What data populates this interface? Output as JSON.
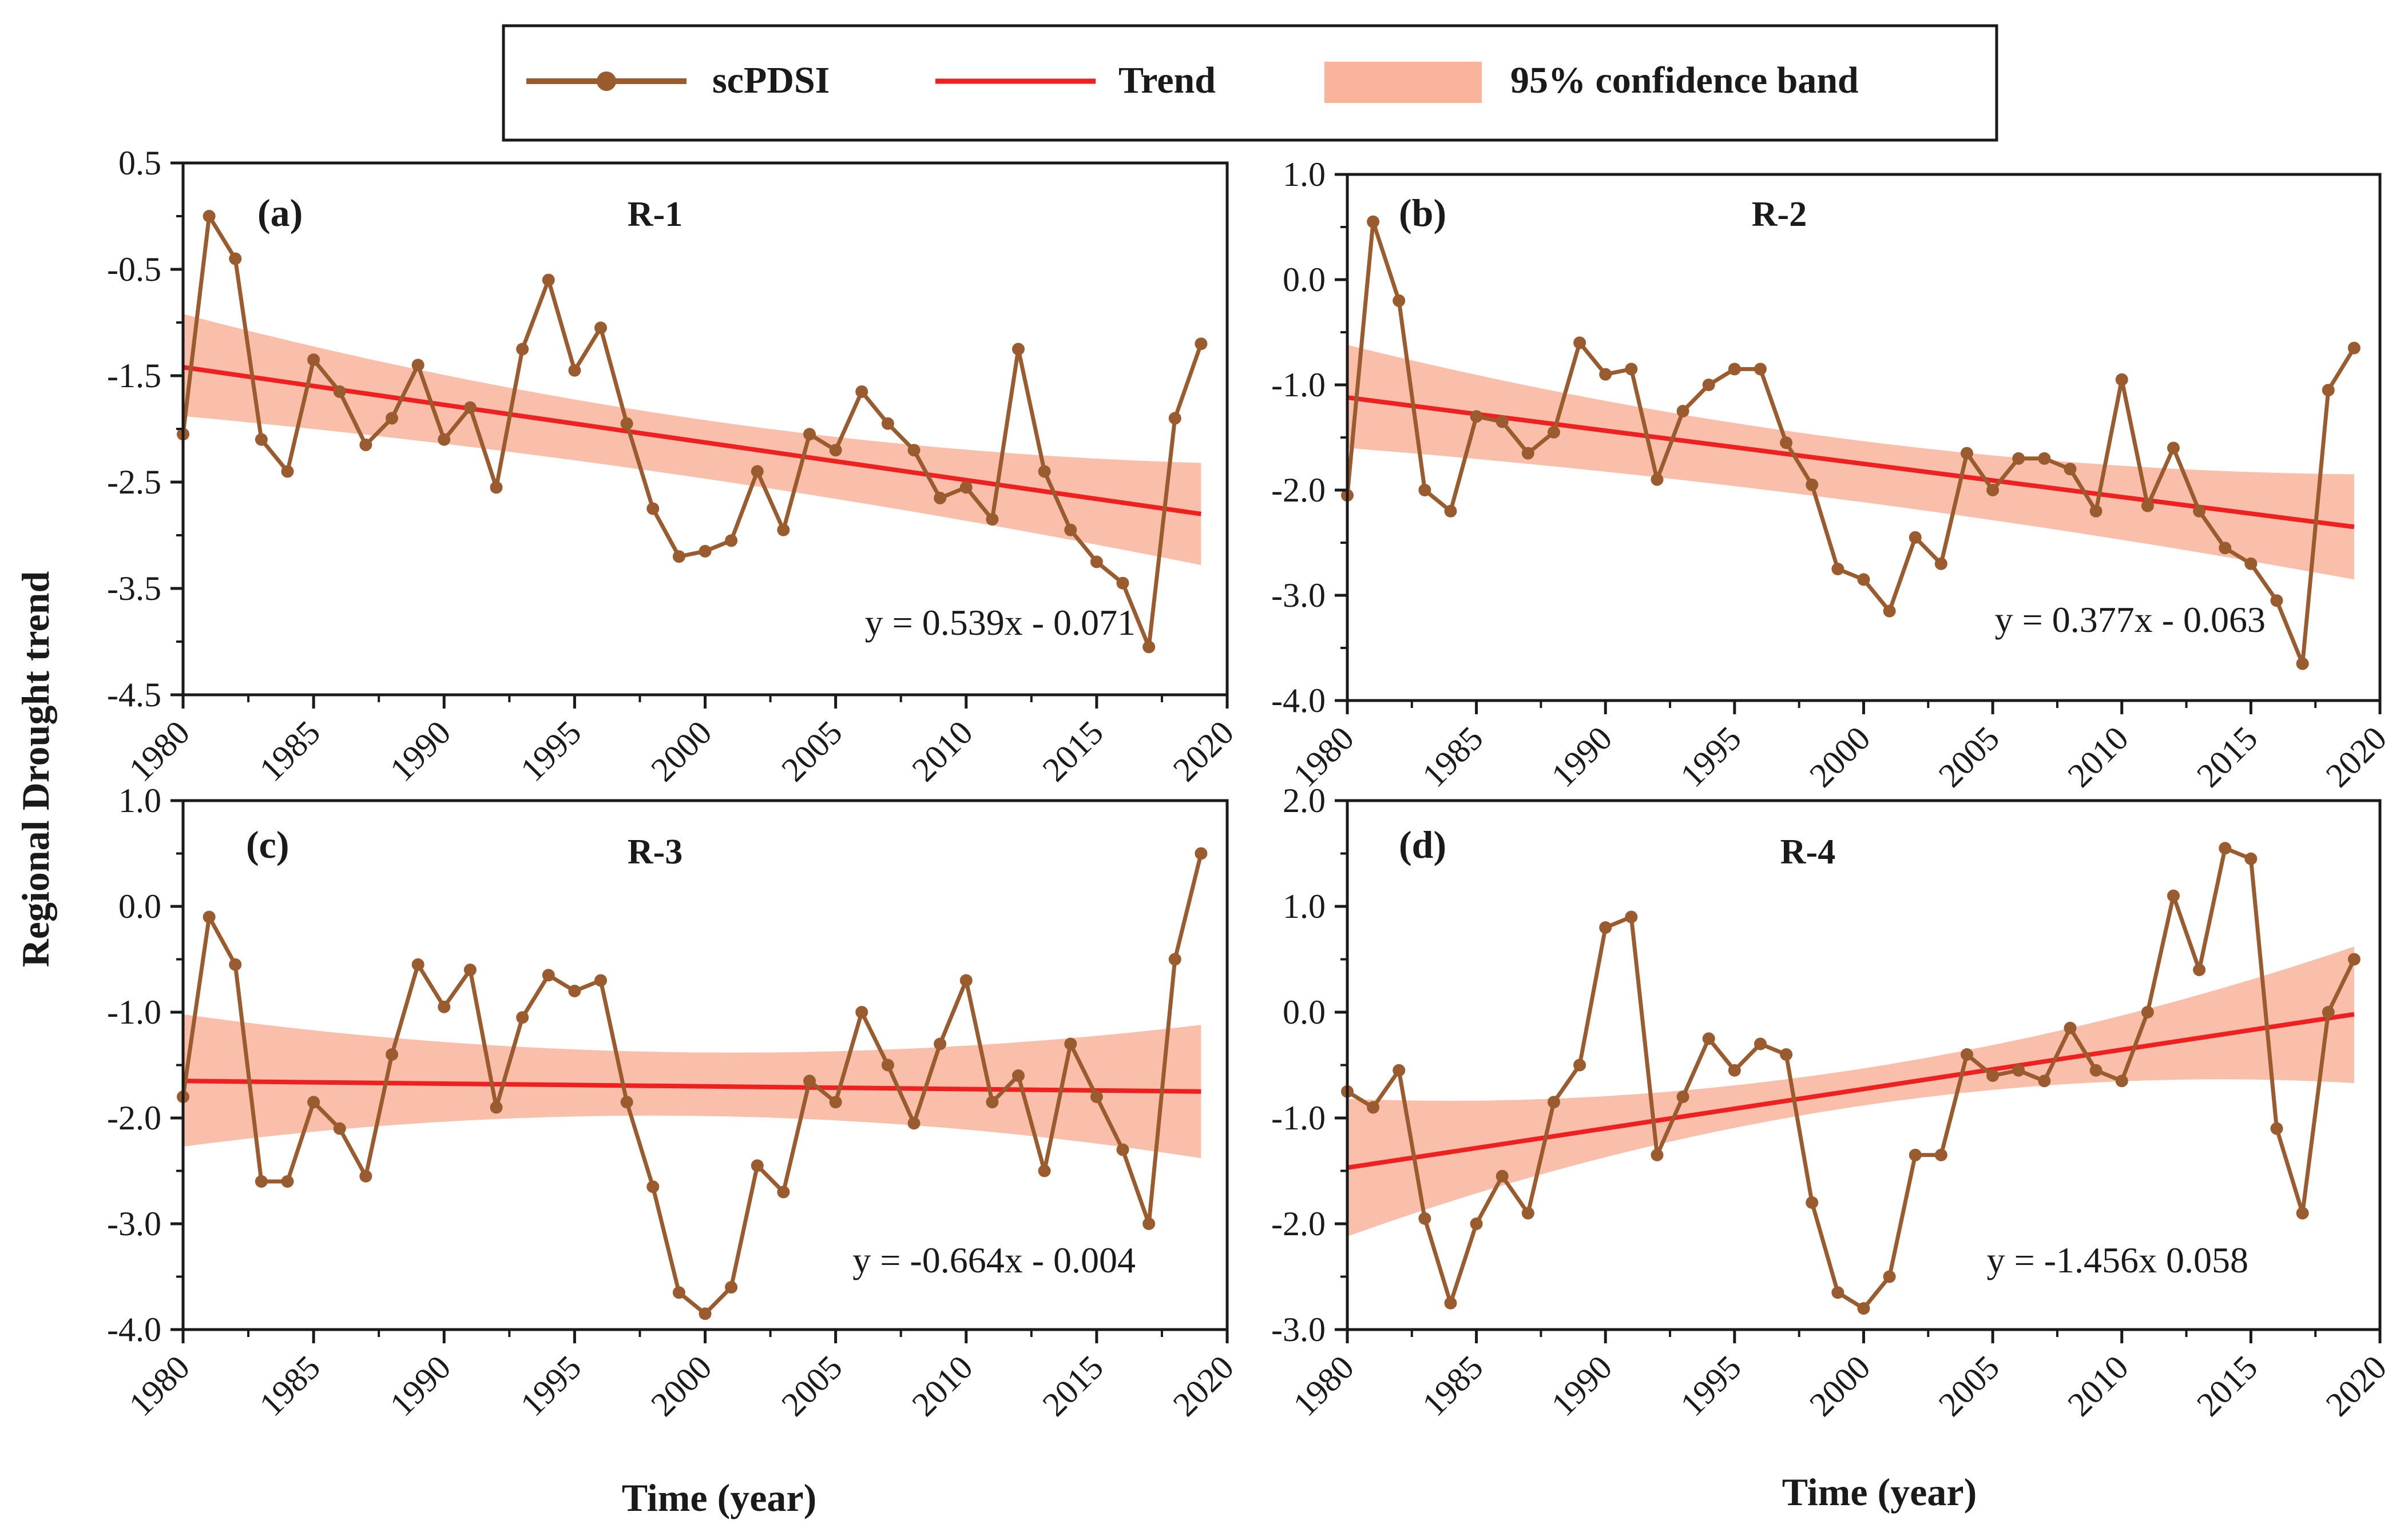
{
  "chart_data": {
    "type": "line",
    "shared": {
      "x_label": "Time (year)",
      "y_label": "Regional Drought trend",
      "x_range": [
        1980,
        2020
      ],
      "x_ticks": [
        "1980",
        "1985",
        "1990",
        "1995",
        "2000",
        "2005",
        "2010",
        "2015",
        "2020"
      ],
      "x_years": [
        1980,
        1981,
        1982,
        1983,
        1984,
        1985,
        1986,
        1987,
        1988,
        1989,
        1990,
        1991,
        1992,
        1993,
        1994,
        1995,
        1996,
        1997,
        1998,
        1999,
        2000,
        2001,
        2002,
        2003,
        2004,
        2005,
        2006,
        2007,
        2008,
        2009,
        2010,
        2011,
        2012,
        2013,
        2014,
        2015,
        2016,
        2017,
        2018,
        2019
      ]
    },
    "legend": {
      "position": "top-center",
      "items": [
        {
          "label": "scPDSI",
          "kind": "line-marker",
          "color": "#9a5b2e"
        },
        {
          "label": "Trend",
          "kind": "line",
          "color": "#ee2020"
        },
        {
          "label": "95% confidence band",
          "kind": "band",
          "color": "#f9b49b"
        }
      ]
    },
    "panels": [
      {
        "id": "a",
        "letter": "(a)",
        "region": "R-1",
        "equation": "y = 0.539x - 0.071",
        "ylim": [
          -4.5,
          0.5
        ],
        "y_ticks": [
          "0.5",
          "-0.5",
          "-1.5",
          "-2.5",
          "-3.5",
          "-4.5"
        ],
        "y_tick_values": [
          0.5,
          -0.5,
          -1.5,
          -2.5,
          -3.5,
          -4.5
        ],
        "series": {
          "name": "scPDSI",
          "values": [
            -2.05,
            0.0,
            -0.4,
            -2.1,
            -2.4,
            -1.35,
            -1.65,
            -2.15,
            -1.9,
            -1.4,
            -2.1,
            -1.8,
            -2.55,
            -1.25,
            -0.6,
            -1.45,
            -1.05,
            -1.95,
            -2.75,
            -3.2,
            -3.15,
            -3.05,
            -2.4,
            -2.95,
            -2.05,
            -2.2,
            -1.65,
            -1.95,
            -2.2,
            -2.65,
            -2.55,
            -2.85,
            -1.25,
            -2.4,
            -2.95,
            -3.25,
            -3.45,
            -4.05,
            -1.9,
            -1.2
          ]
        },
        "trend": {
          "start": -1.42,
          "end": -2.8
        },
        "band": {
          "upper_start": -0.92,
          "upper_mid": -1.9,
          "upper_end": -2.32,
          "lower_start": -1.88,
          "lower_mid": -2.45,
          "lower_end": -3.28
        }
      },
      {
        "id": "b",
        "letter": "(b)",
        "region": "R-2",
        "equation": "y = 0.377x - 0.063",
        "ylim": [
          -4.0,
          1.0
        ],
        "y_ticks": [
          "1.0",
          "0.0",
          "-1.0",
          "-2.0",
          "-3.0",
          "-4.0"
        ],
        "y_tick_values": [
          1.0,
          0.0,
          -1.0,
          -2.0,
          -3.0,
          -4.0
        ],
        "series": {
          "name": "scPDSI",
          "values": [
            -2.05,
            0.55,
            -0.2,
            -2.0,
            -2.2,
            -1.3,
            -1.35,
            -1.65,
            -1.45,
            -0.6,
            -0.9,
            -0.85,
            -1.9,
            -1.25,
            -1.0,
            -0.85,
            -0.85,
            -1.55,
            -1.95,
            -2.75,
            -2.85,
            -3.15,
            -2.45,
            -2.7,
            -1.65,
            -2.0,
            -1.7,
            -1.7,
            -1.8,
            -2.2,
            -0.95,
            -2.15,
            -1.6,
            -2.2,
            -2.55,
            -2.7,
            -3.05,
            -3.65,
            -1.05,
            -0.65
          ]
        },
        "trend": {
          "start": -1.12,
          "end": -2.35
        },
        "band": {
          "upper_start": -0.62,
          "upper_mid": -1.52,
          "upper_end": -1.85,
          "lower_start": -1.6,
          "lower_mid": -2.1,
          "lower_end": -2.85
        }
      },
      {
        "id": "c",
        "letter": "(c)",
        "region": "R-3",
        "equation": "y = -0.664x - 0.004",
        "ylim": [
          -4.0,
          1.0
        ],
        "y_ticks": [
          "1.0",
          "0.0",
          "-1.0",
          "-2.0",
          "-3.0",
          "-4.0"
        ],
        "y_tick_values": [
          1.0,
          0.0,
          -1.0,
          -2.0,
          -3.0,
          -4.0
        ],
        "series": {
          "name": "scPDSI",
          "values": [
            -1.8,
            -0.1,
            -0.55,
            -2.6,
            -2.6,
            -1.85,
            -2.1,
            -2.55,
            -1.4,
            -0.55,
            -0.95,
            -0.6,
            -1.9,
            -1.05,
            -0.65,
            -0.8,
            -0.7,
            -1.85,
            -2.65,
            -3.65,
            -3.85,
            -3.6,
            -2.45,
            -2.7,
            -1.65,
            -1.85,
            -1.0,
            -1.5,
            -2.05,
            -1.3,
            -0.7,
            -1.85,
            -1.6,
            -2.5,
            -1.3,
            -1.8,
            -2.3,
            -3.0,
            -0.5,
            0.5
          ]
        },
        "trend": {
          "start": -1.65,
          "end": -1.75
        },
        "band": {
          "upper_start": -1.02,
          "upper_mid": -1.38,
          "upper_end": -1.12,
          "lower_start": -2.27,
          "lower_mid": -1.98,
          "lower_end": -2.38
        }
      },
      {
        "id": "d",
        "letter": "(d)",
        "region": "R-4",
        "equation": "y = -1.456x 0.058",
        "ylim": [
          -3.0,
          2.0
        ],
        "y_ticks": [
          "2.0",
          "1.0",
          "0.0",
          "-1.0",
          "-2.0",
          "-3.0"
        ],
        "y_tick_values": [
          2.0,
          1.0,
          0.0,
          -1.0,
          -2.0,
          -3.0
        ],
        "series": {
          "name": "scPDSI",
          "values": [
            -0.75,
            -0.9,
            -0.55,
            -1.95,
            -2.75,
            -2.0,
            -1.55,
            -1.9,
            -0.85,
            -0.5,
            0.8,
            0.9,
            -1.35,
            -0.8,
            -0.25,
            -0.55,
            -0.3,
            -0.4,
            -1.8,
            -2.65,
            -2.8,
            -2.5,
            -1.35,
            -1.35,
            -0.4,
            -0.6,
            -0.55,
            -0.65,
            -0.15,
            -0.55,
            -0.65,
            0.0,
            1.1,
            0.4,
            1.55,
            1.45,
            -1.1,
            -1.9,
            0.0,
            0.5
          ]
        },
        "trend": {
          "start": -1.47,
          "end": -0.02
        },
        "band": {
          "upper_start": -0.82,
          "upper_mid": -0.55,
          "upper_end": 0.62,
          "lower_start": -2.12,
          "lower_mid": -0.9,
          "lower_end": -0.67
        }
      }
    ]
  }
}
